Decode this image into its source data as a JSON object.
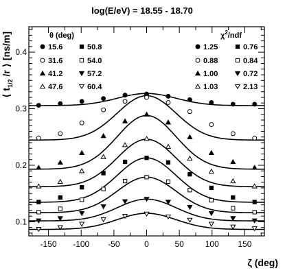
{
  "chart_data": {
    "type": "scatter",
    "title": "log(E/eV) = 18.55 - 18.70",
    "xlabel": "ζ (deg)",
    "ylabel": "⟨ t_1/2 /r ⟩ [ns/m]",
    "xlim": [
      -180,
      180
    ],
    "ylim": [
      0.075,
      0.445
    ],
    "xticks": [
      -150,
      -100,
      -50,
      0,
      50,
      100,
      150
    ],
    "yticks": [
      0.1,
      0.2,
      0.3,
      0.4
    ],
    "legend_theta_header": "θ (deg)",
    "legend_chi_header": "χ²/ndf",
    "legend_placement": "top",
    "x": [
      -165,
      -132,
      -99,
      -66,
      -33,
      0,
      33,
      66,
      99,
      132,
      165
    ],
    "series": [
      {
        "name": "15.6",
        "marker": "filled-circle",
        "chi2": "1.25",
        "fit": {
          "base": 0.3055,
          "amp": 0.0215
        },
        "values": [
          0.306,
          0.309,
          0.313,
          0.318,
          0.324,
          0.326,
          0.322,
          0.316,
          0.311,
          0.308,
          0.308
        ]
      },
      {
        "name": "31.6",
        "marker": "open-circle",
        "chi2": "0.88",
        "fit": {
          "base": 0.2445,
          "amp": 0.0785
        },
        "values": [
          0.248,
          0.256,
          0.275,
          0.298,
          0.313,
          0.32,
          0.311,
          0.295,
          0.272,
          0.256,
          0.248
        ]
      },
      {
        "name": "41.2",
        "marker": "filled-triangle",
        "chi2": "1.00",
        "fit": {
          "base": 0.193,
          "amp": 0.095
        },
        "values": [
          0.196,
          0.205,
          0.222,
          0.252,
          0.278,
          0.29,
          0.276,
          0.25,
          0.222,
          0.206,
          0.196
        ]
      },
      {
        "name": "47.6",
        "marker": "open-triangle",
        "chi2": "1.03",
        "fit": {
          "base": 0.162,
          "amp": 0.084
        },
        "values": [
          0.163,
          0.171,
          0.19,
          0.215,
          0.236,
          0.247,
          0.233,
          0.212,
          0.189,
          0.172,
          0.163
        ]
      },
      {
        "name": "50.8",
        "marker": "filled-square",
        "chi2": "0.76",
        "fit": {
          "base": 0.1345,
          "amp": 0.0785
        },
        "values": [
          0.135,
          0.143,
          0.161,
          0.186,
          0.206,
          0.213,
          0.205,
          0.184,
          0.16,
          0.143,
          0.135
        ]
      },
      {
        "name": "54.0",
        "marker": "open-square",
        "chi2": "0.84",
        "fit": {
          "base": 0.116,
          "amp": 0.063
        },
        "values": [
          0.117,
          0.123,
          0.139,
          0.158,
          0.172,
          0.179,
          0.171,
          0.156,
          0.138,
          0.124,
          0.117
        ]
      },
      {
        "name": "57.2",
        "marker": "filled-triangle-down",
        "chi2": "0.72",
        "fit": {
          "base": 0.1015,
          "amp": 0.0385
        },
        "values": [
          0.102,
          0.106,
          0.115,
          0.127,
          0.136,
          0.14,
          0.135,
          0.126,
          0.115,
          0.106,
          0.102
        ]
      },
      {
        "name": "60.4",
        "marker": "open-triangle-down",
        "chi2": "2.13",
        "fit": {
          "base": 0.0865,
          "amp": 0.0285
        },
        "values": [
          0.087,
          0.09,
          0.096,
          0.104,
          0.11,
          0.114,
          0.109,
          0.103,
          0.096,
          0.091,
          0.088
        ]
      }
    ]
  }
}
